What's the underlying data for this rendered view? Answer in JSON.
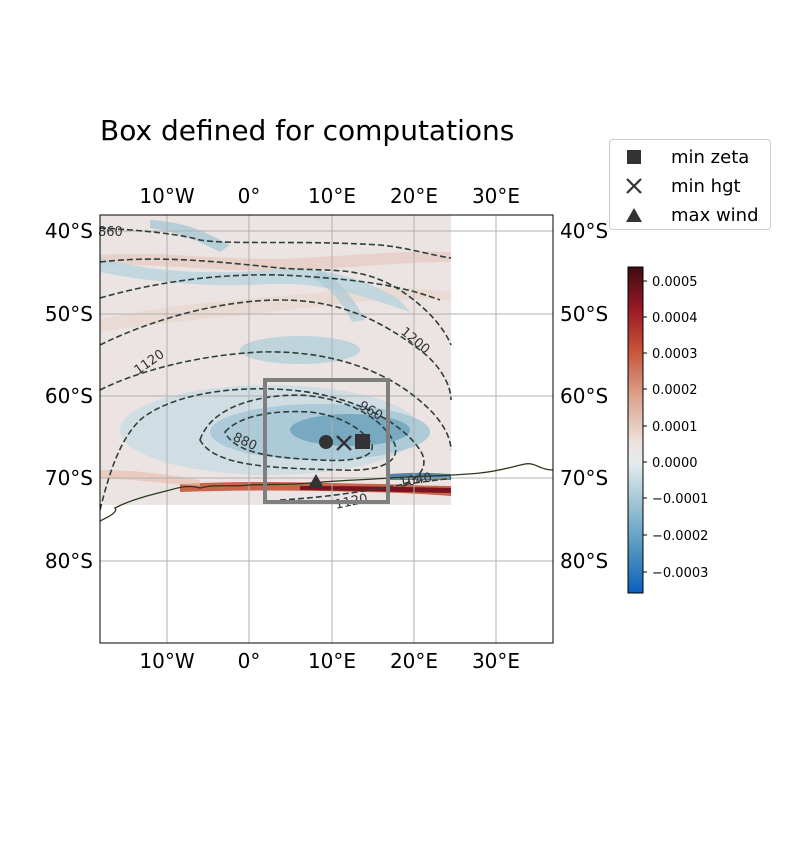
{
  "title": "Box defined for computations",
  "map": {
    "lon_ticks": [
      "10°W",
      "0°",
      "10°E",
      "20°E",
      "30°E"
    ],
    "lat_ticks": [
      "40°S",
      "50°S",
      "60°S",
      "70°S",
      "80°S"
    ],
    "lon_range": [
      -18.5,
      37
    ],
    "lat_range": [
      -90,
      -38
    ],
    "field_extent": {
      "lon": [
        -18.5,
        24.5
      ],
      "lat": [
        -73.5,
        -38
      ]
    },
    "contour_labels": [
      "860",
      "1120",
      "1200",
      "960",
      "880",
      "1040",
      "1120"
    ],
    "computation_box": {
      "lon": [
        2,
        17
      ],
      "lat": [
        -73,
        -58
      ],
      "color": "#7f7f7f"
    },
    "markers": {
      "min_zeta": {
        "lon": 13.8,
        "lat": -65.5
      },
      "min_hgt": {
        "lon": 11.5,
        "lat": -65.7
      },
      "max_wind": {
        "lon": 8,
        "lat": -70.5
      },
      "center": {
        "lon": 9.5,
        "lat": -65.5
      }
    },
    "colors": {
      "marker": "#333333",
      "contour": "#2f3f3a",
      "coast": "#2a3a1a"
    }
  },
  "legend": {
    "items": [
      {
        "label": "min zeta",
        "symbol": "square"
      },
      {
        "label": "min hgt",
        "symbol": "x"
      },
      {
        "label": "max wind",
        "symbol": "triangle"
      }
    ]
  },
  "colorbar": {
    "ticks": [
      "0.0005",
      "0.0004",
      "0.0003",
      "0.0002",
      "0.0001",
      "0.0000",
      "−0.0001",
      "−0.0002",
      "−0.0003"
    ],
    "range": [
      -0.00036,
      0.00053
    ],
    "colors": [
      "#0a5fbf",
      "#4a90bd",
      "#9cc3d4",
      "#e6ecee",
      "#eee2de",
      "#dca590",
      "#c7553a",
      "#9a1a26",
      "#3d0b10"
    ]
  }
}
